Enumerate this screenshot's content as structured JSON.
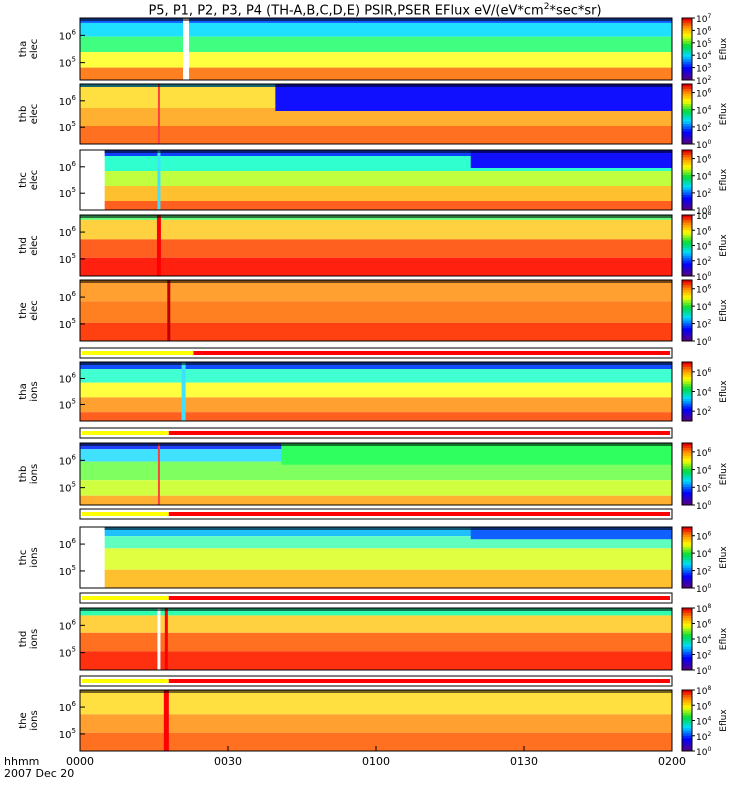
{
  "title_pre": "P5, P1, P2, P3, P4 (TH-A,B,C,D,E) PSIR,PSER EFlux eV/(eV*cm",
  "title_sup": "2",
  "title_post": "*sec*sr)",
  "footer": {
    "line1": "hhmm",
    "line2": "2007 Dec 20"
  },
  "x_ticks": [
    "0000",
    "0030",
    "0100",
    "0130",
    "0200"
  ],
  "colorbar_label": "Eflux",
  "colors": {
    "band_yellow": "#ffff00",
    "band_red": "#ff0000"
  },
  "chart_data": {
    "type": "heatmap",
    "x_range_minutes": [
      0,
      120
    ],
    "panels": [
      {
        "name": "tha-elec",
        "probe": "tha",
        "species": "elec",
        "ylog_ticks": [
          5,
          6
        ],
        "cbar_ticks": [
          2,
          3,
          4,
          5,
          6,
          7
        ],
        "colormap_range": [
          2,
          7
        ]
      },
      {
        "name": "thb-elec",
        "probe": "thb",
        "species": "elec",
        "ylog_ticks": [
          5,
          6
        ],
        "cbar_ticks": [
          0,
          2,
          4,
          6
        ],
        "colormap_range": [
          0,
          7
        ]
      },
      {
        "name": "thc-elec",
        "probe": "thc",
        "species": "elec",
        "ylog_ticks": [
          5,
          6
        ],
        "cbar_ticks": [
          0,
          2,
          4,
          6
        ],
        "colormap_range": [
          0,
          7
        ]
      },
      {
        "name": "thd-elec",
        "probe": "thd",
        "species": "elec",
        "ylog_ticks": [
          5,
          6
        ],
        "cbar_ticks": [
          0,
          2,
          4,
          6,
          8
        ],
        "colormap_range": [
          0,
          8
        ]
      },
      {
        "name": "the-elec",
        "probe": "the",
        "species": "elec",
        "ylog_ticks": [
          5,
          6
        ],
        "cbar_ticks": [
          0,
          2,
          4,
          6
        ],
        "colormap_range": [
          0,
          7
        ]
      },
      {
        "name": "tha-ions",
        "probe": "tha",
        "species": "ions",
        "ylog_ticks": [
          5,
          6
        ],
        "cbar_ticks": [
          2,
          4,
          6
        ],
        "colormap_range": [
          1,
          7
        ]
      },
      {
        "name": "thb-ions",
        "probe": "thb",
        "species": "ions",
        "ylog_ticks": [
          5,
          6
        ],
        "cbar_ticks": [
          0,
          2,
          4,
          6
        ],
        "colormap_range": [
          0,
          7
        ]
      },
      {
        "name": "thc-ions",
        "probe": "thc",
        "species": "ions",
        "ylog_ticks": [
          5,
          6
        ],
        "cbar_ticks": [
          0,
          2,
          4,
          6
        ],
        "colormap_range": [
          0,
          7
        ]
      },
      {
        "name": "thd-ions",
        "probe": "thd",
        "species": "ions",
        "ylog_ticks": [
          5,
          6
        ],
        "cbar_ticks": [
          0,
          2,
          4,
          6,
          8
        ],
        "colormap_range": [
          0,
          8
        ]
      },
      {
        "name": "the-ions",
        "probe": "the",
        "species": "ions",
        "ylog_ticks": [
          5,
          6
        ],
        "cbar_ticks": [
          0,
          2,
          4,
          6,
          8
        ],
        "colormap_range": [
          0,
          8
        ]
      }
    ],
    "mode_bars": [
      {
        "name": "mode-bar-the-elec",
        "yellow_until_min": 23,
        "red_after_min": 23
      },
      {
        "name": "mode-bar-tha-ions",
        "yellow_until_min": 18,
        "red_after_min": 18
      },
      {
        "name": "mode-bar-thb-ions",
        "yellow_until_min": 18,
        "red_after_min": 18
      },
      {
        "name": "mode-bar-thc-ions",
        "yellow_until_min": 18,
        "red_after_min": 18
      },
      {
        "name": "mode-bar-thd-ions",
        "yellow_until_min": 18,
        "red_after_min": 18
      }
    ]
  }
}
